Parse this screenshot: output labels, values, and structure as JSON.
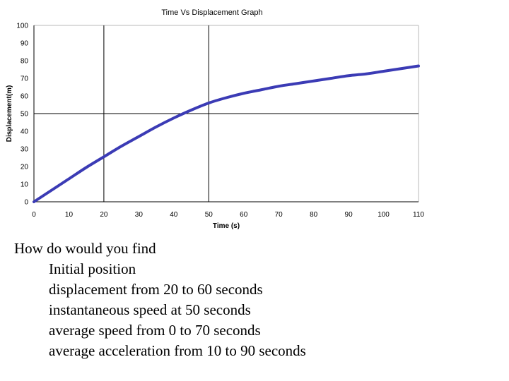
{
  "chart_data": {
    "type": "line",
    "title": "Time Vs Displacement Graph",
    "xlabel": "Time (s)",
    "ylabel": "Displacement(m)",
    "xlim": [
      0,
      110
    ],
    "ylim": [
      0,
      100
    ],
    "x_ticks": [
      0,
      10,
      20,
      30,
      40,
      50,
      60,
      70,
      80,
      90,
      100,
      110
    ],
    "y_ticks": [
      0,
      10,
      20,
      30,
      40,
      50,
      60,
      70,
      80,
      90,
      100
    ],
    "reference_lines": {
      "x": [
        20,
        50
      ],
      "y": [
        50
      ]
    },
    "grid": false,
    "line_color": "#3b3bb5",
    "series": [
      {
        "x": [
          0,
          5,
          10,
          15,
          20,
          25,
          30,
          35,
          40,
          45,
          50,
          55,
          60,
          65,
          70,
          75,
          80,
          85,
          90,
          95,
          100,
          105,
          110
        ],
        "values": [
          0,
          6.5,
          13,
          19.5,
          25.5,
          31.5,
          37,
          42.5,
          47.5,
          52,
          56,
          59,
          61.5,
          63.5,
          65.5,
          67,
          68.5,
          70,
          71.5,
          72.5,
          74,
          75.5,
          77
        ]
      }
    ]
  },
  "questions": {
    "heading": "How do would you find",
    "items": [
      "Initial position",
      "displacement from 20 to 60 seconds",
      "instantaneous speed at 50 seconds",
      "average speed from 0 to 70 seconds",
      "average acceleration from 10 to 90 seconds"
    ]
  }
}
